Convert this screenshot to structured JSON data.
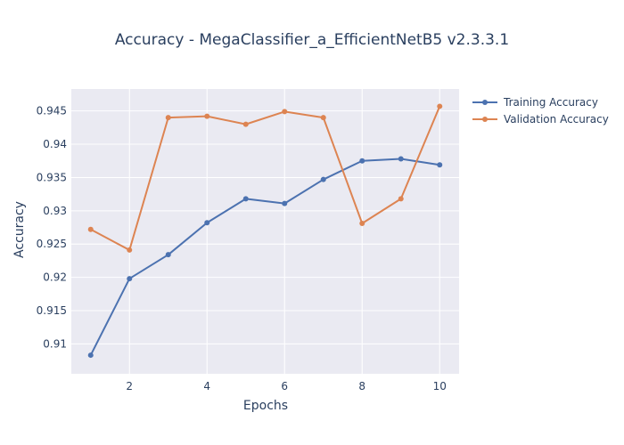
{
  "chart_data": {
    "type": "line",
    "title": "Accuracy - MegaClassifier_a_EfficientNetB5 v2.3.3.1",
    "xlabel": "Epochs",
    "ylabel": "Accuracy",
    "x": [
      1,
      2,
      3,
      4,
      5,
      6,
      7,
      8,
      9,
      10
    ],
    "xlim": [
      0.5,
      10.5
    ],
    "ylim": [
      0.9055,
      0.9483
    ],
    "xticks": [
      2,
      4,
      6,
      8,
      10
    ],
    "yticks": [
      0.91,
      0.915,
      0.92,
      0.925,
      0.93,
      0.935,
      0.94,
      0.945
    ],
    "ytick_labels": [
      "0.91",
      "0.915",
      "0.92",
      "0.925",
      "0.93",
      "0.935",
      "0.94",
      "0.945"
    ],
    "grid": true,
    "legend_position": "top-right outside",
    "series": [
      {
        "name": "Training Accuracy",
        "color": "#4c72b0",
        "values": [
          0.9083,
          0.9198,
          0.9234,
          0.9282,
          0.9318,
          0.9311,
          0.9347,
          0.9375,
          0.9378,
          0.9369
        ]
      },
      {
        "name": "Validation Accuracy",
        "color": "#dd8452",
        "values": [
          0.9272,
          0.9241,
          0.944,
          0.9442,
          0.943,
          0.9449,
          0.944,
          0.9281,
          0.9318,
          0.9457
        ]
      }
    ]
  }
}
